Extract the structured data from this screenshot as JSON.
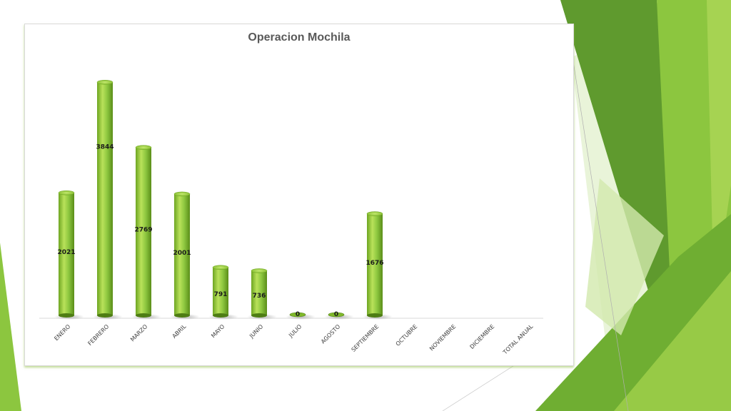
{
  "chart_data": {
    "type": "bar",
    "title": "Operacion Mochila",
    "categories": [
      "ENERO",
      "FEBRERO",
      "MARZO",
      "ABRIL",
      "MAYO",
      "JUNIO",
      "JULIO",
      "AGOSTO",
      "SEPTIEMBRE",
      "OCTUBRE",
      "NOVIEMBRE",
      "DICIEMBRE",
      "TOTAL ANUAL"
    ],
    "values": [
      2021,
      3844,
      2769,
      2001,
      791,
      736,
      0,
      0,
      1676,
      null,
      null,
      null,
      null
    ],
    "data_labels": [
      "2021",
      "3844",
      "2769",
      "2001",
      "791",
      "736",
      "0",
      "0",
      "1676",
      "",
      "",
      "",
      ""
    ],
    "xlabel": "",
    "ylabel": "",
    "ylim": [
      0,
      4000
    ],
    "grid": false,
    "legend": "none",
    "bar_style": "cylinder",
    "bar_color": "#7fb82a",
    "bar_highlight": "#b9e25a",
    "bar_shadow": "#4e7d14"
  },
  "theme": {
    "accent_dark": "#5f9a2e",
    "accent_mid": "#8cc63f",
    "accent_light": "#c8e39b"
  }
}
